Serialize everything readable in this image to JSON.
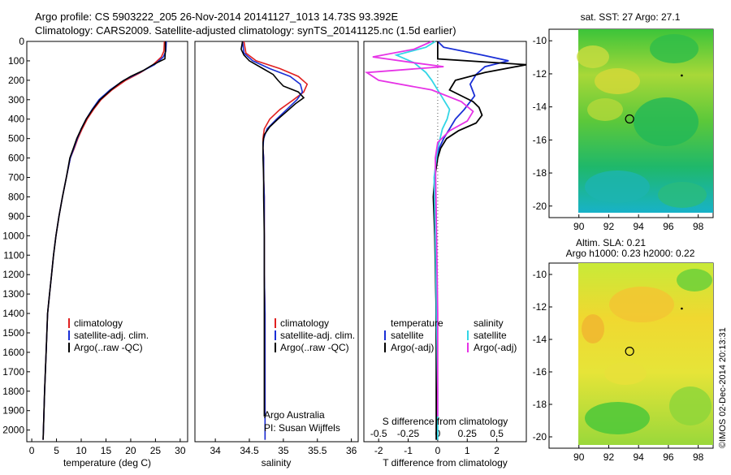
{
  "header": {
    "line1": "Argo profile: CS 5903222_205 26-Nov-2014 20141127_1013 14.73S 93.392E",
    "line2": "Climatology: CARS2009. Satellite-adjusted climatology: synTS_20141125.nc (1.5d earlier)"
  },
  "colors": {
    "climatology": "#e02020",
    "satellite": "#1a2fd6",
    "argo": "#000000",
    "salinity_satellite": "#33d6e6",
    "salinity_argo": "#e633e6"
  },
  "chart_data": [
    {
      "type": "line",
      "xlabel": "temperature (deg C)",
      "xlim": [
        -1,
        31.5
      ],
      "xticks": [
        0,
        5,
        10,
        15,
        20,
        25,
        30
      ],
      "ylim": [
        0,
        2060
      ],
      "yticks": [
        0,
        100,
        200,
        300,
        400,
        500,
        600,
        700,
        800,
        900,
        1000,
        1100,
        1200,
        1300,
        1400,
        1500,
        1600,
        1700,
        1800,
        1900,
        2000
      ],
      "legend": [
        "climatology",
        "satellite-adj. clim.",
        "Argo(..raw -QC)"
      ],
      "legend_placement": "lower-middle",
      "series": [
        {
          "name": "climatology",
          "x": [
            26.8,
            26.7,
            26.2,
            24.5,
            22.0,
            19.0,
            16.2,
            14.0,
            12.5,
            11.2,
            10.2,
            9.3,
            8.6,
            7.8,
            7.0,
            6.2,
            5.5,
            4.9,
            4.4,
            4.0,
            3.6,
            3.2,
            2.9,
            2.6,
            2.3
          ],
          "y": [
            0,
            50,
            80,
            120,
            160,
            200,
            250,
            300,
            350,
            400,
            450,
            500,
            550,
            600,
            700,
            800,
            900,
            1000,
            1100,
            1200,
            1300,
            1400,
            1600,
            1800,
            2050
          ]
        },
        {
          "name": "satellite-adj. clim.",
          "x": [
            27.2,
            27.1,
            26.6,
            24.8,
            21.8,
            18.6,
            15.8,
            13.6,
            12.2,
            11.0,
            10.0,
            9.2,
            8.5,
            7.8,
            7.0,
            6.2,
            5.5,
            4.9,
            4.4,
            4.0,
            3.6,
            3.2,
            2.9,
            2.6,
            2.3
          ],
          "y": [
            0,
            50,
            80,
            120,
            160,
            200,
            250,
            300,
            350,
            400,
            450,
            500,
            550,
            600,
            700,
            800,
            900,
            1000,
            1100,
            1200,
            1300,
            1400,
            1600,
            1800,
            2050
          ]
        },
        {
          "name": "Argo(..raw -QC)",
          "x": [
            27.0,
            27.0,
            26.9,
            24.5,
            22.5,
            20.0,
            18.0,
            16.0,
            13.8,
            12.3,
            11.0,
            10.0,
            9.1,
            8.4,
            7.7,
            7.0,
            6.2,
            5.5,
            4.9,
            4.4,
            4.0,
            3.6,
            3.2,
            2.9,
            2.6,
            2.3
          ],
          "y": [
            0,
            50,
            90,
            120,
            150,
            180,
            210,
            250,
            300,
            350,
            400,
            450,
            500,
            550,
            600,
            700,
            800,
            900,
            1000,
            1100,
            1200,
            1300,
            1400,
            1600,
            1800,
            2050
          ]
        }
      ]
    },
    {
      "type": "line",
      "xlabel": "salinity",
      "xlim": [
        33.7,
        36.1
      ],
      "xticks": [
        34,
        34.5,
        35,
        35.5,
        36
      ],
      "ylim": [
        0,
        2060
      ],
      "legend": [
        "climatology",
        "satellite-adj. clim.",
        "Argo(..raw -QC)"
      ],
      "legend_placement": "lower-right",
      "annotations": [
        "Argo Australia",
        "PI: Susan Wijffels"
      ],
      "series": [
        {
          "name": "climatology",
          "x": [
            34.42,
            34.45,
            34.6,
            34.95,
            35.22,
            35.35,
            35.3,
            35.15,
            34.95,
            34.8,
            34.72,
            34.7,
            34.7,
            34.71,
            34.71,
            34.72,
            34.72,
            34.72,
            34.73,
            34.73,
            34.73,
            34.73
          ],
          "y": [
            0,
            60,
            100,
            140,
            180,
            220,
            260,
            300,
            350,
            400,
            450,
            500,
            550,
            600,
            700,
            800,
            1000,
            1200,
            1400,
            1600,
            1800,
            2050
          ]
        },
        {
          "name": "satellite-adj. clim.",
          "x": [
            34.4,
            34.42,
            34.55,
            34.8,
            35.1,
            35.25,
            35.28,
            35.2,
            35.05,
            34.9,
            34.76,
            34.71,
            34.7,
            34.71,
            34.71,
            34.72,
            34.72,
            34.72,
            34.73,
            34.73,
            34.73,
            34.73
          ],
          "y": [
            0,
            60,
            100,
            140,
            180,
            220,
            260,
            300,
            350,
            400,
            450,
            500,
            550,
            600,
            700,
            800,
            1000,
            1200,
            1400,
            1600,
            1800,
            2050
          ]
        },
        {
          "name": "Argo(..raw -QC)",
          "x": [
            34.4,
            34.38,
            34.42,
            34.5,
            34.7,
            34.85,
            34.92,
            35.0,
            35.22,
            35.3,
            35.18,
            35.05,
            34.92,
            34.8,
            34.72,
            34.7,
            34.7,
            34.7,
            34.71,
            34.71,
            34.72,
            34.72,
            34.72,
            34.72
          ],
          "y": [
            0,
            40,
            70,
            100,
            140,
            170,
            200,
            230,
            260,
            290,
            320,
            360,
            400,
            440,
            480,
            520,
            560,
            600,
            700,
            800,
            1000,
            1400,
            1800,
            1930
          ]
        }
      ]
    },
    {
      "type": "line",
      "xlabel": "T difference from climatology",
      "xlabel_top": "S difference from climatology",
      "xlim_T": [
        -2.5,
        3.0
      ],
      "xticks_T": [
        -2,
        -1,
        0,
        1,
        2
      ],
      "xticks_S_labels": [
        "-0.5",
        "-0.25",
        "0",
        "0.25",
        "0.5"
      ],
      "ylim": [
        0,
        2060
      ],
      "legend_temperature_title": "temperature",
      "legend_salinity_title": "salinity",
      "legend": [
        "satellite",
        "Argo(-adj)",
        "satellite",
        "Argo(-adj)"
      ],
      "series": [
        {
          "name": "satellite",
          "x": [
            0.0,
            0.2,
            1.5,
            2.4,
            1.6,
            1.3,
            1.1,
            1.25,
            0.9,
            0.6,
            0.4,
            0.2,
            0.05,
            -0.05,
            -0.1,
            -0.1,
            -0.08,
            -0.05,
            -0.03
          ],
          "y": [
            0,
            30,
            70,
            100,
            130,
            170,
            220,
            280,
            350,
            400,
            450,
            500,
            550,
            600,
            700,
            800,
            1000,
            1400,
            2050
          ]
        },
        {
          "name": "Argo(-adj)",
          "x": [
            0.0,
            0.0,
            3.0,
            1.6,
            0.6,
            0.4,
            0.8,
            1.2,
            1.4,
            1.5,
            1.3,
            0.7,
            0.3,
            0.1,
            0.0,
            -0.1,
            -0.15,
            -0.1,
            -0.05,
            -0.05
          ],
          "y": [
            0,
            90,
            120,
            160,
            200,
            250,
            280,
            310,
            340,
            380,
            420,
            460,
            500,
            550,
            600,
            700,
            800,
            1000,
            1400,
            2050
          ]
        },
        {
          "name": "satellite (salinity)",
          "x": [
            -0.02,
            -0.1,
            -0.35,
            -0.2,
            -0.1,
            -0.05,
            0.0,
            0.05,
            0.1,
            0.08,
            0.04,
            0.02,
            0.0,
            -0.03,
            -0.02,
            -0.01,
            0.0,
            0.0
          ],
          "y": [
            0,
            30,
            70,
            110,
            160,
            200,
            250,
            300,
            350,
            400,
            450,
            500,
            550,
            700,
            1000,
            1400,
            1800,
            2050
          ]
        },
        {
          "name": "Argo(-adj) (salinity)",
          "x": [
            -0.05,
            -0.2,
            -0.55,
            -0.2,
            0.05,
            -0.6,
            -0.5,
            -0.05,
            0.2,
            0.3,
            0.25,
            0.1,
            0.0,
            -0.02,
            -0.01,
            0.0,
            0.0
          ],
          "y": [
            0,
            40,
            80,
            110,
            130,
            160,
            200,
            250,
            310,
            360,
            410,
            460,
            520,
            600,
            1000,
            1400,
            1930
          ]
        }
      ]
    },
    {
      "type": "heatmap",
      "title": "sat. SST: 27 Argo: 27.1",
      "xlim": [
        88,
        99
      ],
      "xticks": [
        90,
        92,
        94,
        96,
        98
      ],
      "ylim": [
        -20.7,
        -9.3
      ],
      "yticks": [
        -10,
        -12,
        -14,
        -16,
        -18,
        -20
      ],
      "marker_circle": {
        "x": 93.4,
        "y": -14.73
      },
      "marker_dot": {
        "x": 96.9,
        "y": -12.1
      }
    },
    {
      "type": "heatmap",
      "title": "Altim. SLA: 0.21",
      "subtitle": "Argo h1000: 0.23 h2000: 0.22",
      "xlim": [
        88,
        99
      ],
      "xticks": [
        90,
        92,
        94,
        96,
        98
      ],
      "ylim": [
        -20.7,
        -9.3
      ],
      "yticks": [
        -10,
        -12,
        -14,
        -16,
        -18,
        -20
      ],
      "marker_circle": {
        "x": 93.4,
        "y": -14.73
      },
      "marker_dot": {
        "x": 96.9,
        "y": -12.1
      }
    }
  ],
  "credit": "©IMOS 02-Dec-2014 20:13:31"
}
